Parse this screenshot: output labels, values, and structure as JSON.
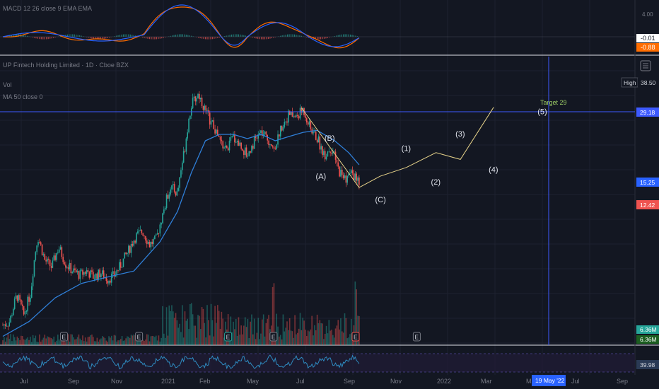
{
  "macd_legend": "MACD 12 26 close 9 EMA EMA",
  "price_legend": "UP Fintech Holding Limited · 1D · Cboe BZX",
  "vol_legend": "Vol",
  "ma_legend": "MA 50 close 0",
  "colors": {
    "background": "#131722",
    "grid": "#1e2230",
    "up": "#26a69a",
    "down": "#ef5350",
    "ma": "#2f7fd8",
    "wave": "#e7d38a",
    "hline": "#3d5afe",
    "vline": "#3d5afe",
    "macd_line": "#2962ff",
    "signal_line": "#ff6d00",
    "rsi": "#2e8bc0"
  },
  "macd_scale": {
    "top_label": "4.00",
    "value1": "-0.01",
    "value2": "-0.88"
  },
  "price_badges": {
    "high_label": "High",
    "high_value": "38.50",
    "target_line": "29.18",
    "ma_value": "15.25",
    "last_price": "12.42"
  },
  "volume_badges": [
    "6.36M",
    "6.36M"
  ],
  "rsi_badge": "39.98",
  "date_badge": "19 May '22",
  "x_axis": [
    "Jul",
    "Sep",
    "Nov",
    "2021",
    "Feb",
    "May",
    "Jul",
    "Sep",
    "Nov",
    "2022",
    "Mar",
    "May",
    "Jul",
    "Sep"
  ],
  "earnings_marker": "E",
  "target_label": "Target 29",
  "chart_data": {
    "type": "candlestick",
    "symbol": "UP Fintech Holding Limited",
    "interval": "1D",
    "y_log": true,
    "high": 38.5,
    "target": 29.18,
    "ma_last": 15.25,
    "last_close": 12.42,
    "price_series": {
      "name": "price",
      "points": [
        [
          0,
          2.5
        ],
        [
          4,
          2.6
        ],
        [
          8,
          3.5
        ],
        [
          12,
          2.8
        ],
        [
          16,
          3.6
        ],
        [
          20,
          6.8
        ],
        [
          24,
          5.2
        ],
        [
          28,
          4.8
        ],
        [
          32,
          6.0
        ],
        [
          36,
          5.0
        ],
        [
          40,
          4.6
        ],
        [
          44,
          4.4
        ],
        [
          48,
          4.6
        ],
        [
          52,
          4.3
        ],
        [
          56,
          4.5
        ],
        [
          60,
          4.2
        ],
        [
          64,
          4.4
        ],
        [
          68,
          5.0
        ],
        [
          72,
          5.8
        ],
        [
          76,
          6.8
        ],
        [
          80,
          7.2
        ],
        [
          84,
          6.2
        ],
        [
          88,
          6.6
        ],
        [
          92,
          9.0
        ],
        [
          96,
          12.0
        ],
        [
          100,
          11.0
        ],
        [
          104,
          18.0
        ],
        [
          108,
          30.0
        ],
        [
          112,
          34.0
        ],
        [
          116,
          28.0
        ],
        [
          120,
          24.0
        ],
        [
          124,
          20.0
        ],
        [
          128,
          18.0
        ],
        [
          132,
          21.0
        ],
        [
          136,
          19.0
        ],
        [
          140,
          17.0
        ],
        [
          144,
          20.0
        ],
        [
          148,
          22.0
        ],
        [
          152,
          20.0
        ],
        [
          156,
          19.0
        ],
        [
          160,
          24.0
        ],
        [
          164,
          27.0
        ],
        [
          168,
          26.0
        ],
        [
          172,
          28.5
        ],
        [
          176,
          23.0
        ],
        [
          180,
          20.5
        ],
        [
          184,
          17.0
        ],
        [
          188,
          18.5
        ],
        [
          192,
          14.5
        ],
        [
          196,
          13.0
        ],
        [
          200,
          14.0
        ],
        [
          204,
          12.2
        ]
      ]
    },
    "ma_series": {
      "name": "MA 50",
      "points": [
        [
          0,
          2.2
        ],
        [
          15,
          2.6
        ],
        [
          30,
          3.4
        ],
        [
          45,
          4.0
        ],
        [
          60,
          4.3
        ],
        [
          75,
          4.6
        ],
        [
          90,
          6.4
        ],
        [
          100,
          9.0
        ],
        [
          108,
          14.0
        ],
        [
          116,
          20.0
        ],
        [
          124,
          21.5
        ],
        [
          132,
          21.5
        ],
        [
          140,
          20.5
        ],
        [
          148,
          21.5
        ],
        [
          156,
          20.0
        ],
        [
          164,
          21.0
        ],
        [
          172,
          22.0
        ],
        [
          180,
          22.5
        ],
        [
          190,
          20.0
        ],
        [
          198,
          17.5
        ],
        [
          204,
          15.25
        ]
      ]
    },
    "wave_projection": {
      "points": [
        [
          171,
          29.0
        ],
        [
          204,
          11.8
        ],
        [
          216,
          13.4
        ],
        [
          231,
          14.8
        ],
        [
          248,
          17.5
        ],
        [
          262,
          16.2
        ],
        [
          281,
          29.18
        ]
      ],
      "labels": [
        {
          "text": "(A)",
          "x": 182,
          "y": 13.0
        },
        {
          "text": "(B)",
          "x": 187,
          "y": 20.0
        },
        {
          "text": "(C)",
          "x": 216,
          "y": 10.0
        },
        {
          "text": "(1)",
          "x": 231,
          "y": 17.8
        },
        {
          "text": "(2)",
          "x": 248,
          "y": 12.2
        },
        {
          "text": "(3)",
          "x": 262,
          "y": 21.0
        },
        {
          "text": "(4)",
          "x": 281,
          "y": 14.0
        },
        {
          "text": "(5)",
          "x": 309,
          "y": 27.0
        }
      ]
    },
    "earnings_x": [
      35,
      78,
      129,
      155,
      202,
      237
    ]
  }
}
